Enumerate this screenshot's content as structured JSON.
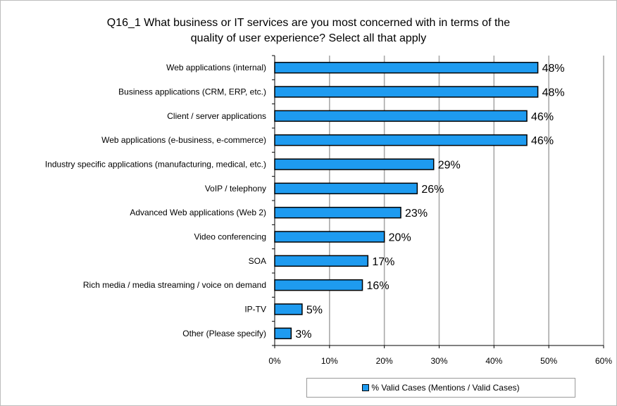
{
  "chart_data": {
    "type": "bar",
    "orientation": "horizontal",
    "title": "Q16_1 What business or IT services are you most concerned with in terms of the quality of user experience? Select all that apply",
    "title_lines": [
      "Q16_1 What business or IT services are you most concerned with in terms of the",
      "quality of user experience? Select all that apply"
    ],
    "categories": [
      "Web applications (internal)",
      "Business applications (CRM, ERP, etc.)",
      "Client / server applications",
      "Web applications (e-business, e-commerce)",
      "Industry specific applications (manufacturing, medical, etc.)",
      "VoIP / telephony",
      "Advanced Web applications (Web 2)",
      "Video conferencing",
      "SOA",
      "Rich media / media streaming / voice on demand",
      "IP-TV",
      "Other (Please specify)"
    ],
    "series": [
      {
        "name": "% Valid Cases (Mentions / Valid Cases)",
        "values": [
          48,
          48,
          46,
          46,
          29,
          26,
          23,
          20,
          17,
          16,
          5,
          3
        ],
        "labels": [
          "48%",
          "48%",
          "46%",
          "46%",
          "29%",
          "26%",
          "23%",
          "20%",
          "17%",
          "16%",
          "5%",
          "3%"
        ]
      }
    ],
    "xlim": [
      0,
      60
    ],
    "xticks": [
      0,
      10,
      20,
      30,
      40,
      50,
      60
    ],
    "xtick_labels": [
      "0%",
      "10%",
      "20%",
      "30%",
      "40%",
      "50%",
      "60%"
    ],
    "grid": true,
    "legend_position": "bottom-right",
    "colors": {
      "bar": "#1e9bf0",
      "bar_border": "#000000",
      "grid": "#a9a9a9"
    }
  }
}
